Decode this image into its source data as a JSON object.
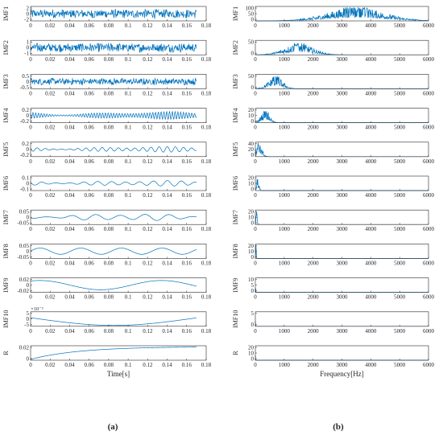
{
  "figure": {
    "panel_labels": [
      "(a)",
      "(b)"
    ],
    "left_xlabel": "Time[s]",
    "right_xlabel": "Frequency[Hz]",
    "exponent_label": "×10⁻³",
    "line_color": "#0072bd"
  },
  "chart_data": [
    {
      "type": "line",
      "panel": "a",
      "description_of_content": "Intrinsic mode functions of a vibration signal in the time domain",
      "x": {
        "label": "Time[s]",
        "range": [
          0,
          0.18
        ],
        "ticks": [
          0,
          0.02,
          0.04,
          0.06,
          0.08,
          0.1,
          0.12,
          0.14,
          0.16,
          0.18
        ],
        "tick_labels": [
          "0",
          "0.02",
          "0.04",
          "0.06",
          "0.08",
          "0.1",
          "0.12",
          "0.14",
          "0.16",
          "0.18"
        ],
        "data_range": [
          0,
          0.17
        ]
      },
      "series": [
        {
          "name": "IMF1",
          "ylim": [
            -2,
            2
          ],
          "y_ticks": [
            "2",
            "0",
            "-2"
          ],
          "amplitude": 1.3,
          "dominant_hz": 3500,
          "pattern": "noise"
        },
        {
          "name": "IMF2",
          "ylim": [
            -1.2,
            1.2
          ],
          "y_ticks": [
            "1",
            "0",
            "-1"
          ],
          "amplitude": 0.8,
          "dominant_hz": 1500,
          "pattern": "noise"
        },
        {
          "name": "IMF3",
          "ylim": [
            -0.6,
            0.6
          ],
          "y_ticks": [
            "0.5",
            "0",
            "-0.5"
          ],
          "amplitude": 0.3,
          "dominant_hz": 700,
          "pattern": "noise"
        },
        {
          "name": "IMF4",
          "ylim": [
            -0.25,
            0.25
          ],
          "y_ticks": [
            "0.2",
            "0",
            "-0.2"
          ],
          "amplitude": 0.14,
          "dominant_hz": 350,
          "pattern": "oscillation"
        },
        {
          "name": "IMF5",
          "ylim": [
            -0.25,
            0.25
          ],
          "y_ticks": [
            "0.2",
            "0",
            "-0.2"
          ],
          "amplitude": 0.1,
          "dominant_hz": 120,
          "pattern": "oscillation"
        },
        {
          "name": "IMF6",
          "ylim": [
            -0.15,
            0.15
          ],
          "y_ticks": [
            "0.1",
            "0",
            "-0.1"
          ],
          "amplitude": 0.06,
          "dominant_hz": 70,
          "pattern": "oscillation"
        },
        {
          "name": "IMF7",
          "ylim": [
            -0.07,
            0.07
          ],
          "y_ticks": [
            "0.05",
            "0",
            "-0.05"
          ],
          "amplitude": 0.035,
          "dominant_hz": 40,
          "pattern": "oscillation"
        },
        {
          "name": "IMF8",
          "ylim": [
            -0.07,
            0.07
          ],
          "y_ticks": [
            "0.05",
            "0",
            "-0.05"
          ],
          "amplitude": 0.03,
          "dominant_hz": 24,
          "pattern": "sine"
        },
        {
          "name": "IMF9",
          "ylim": [
            -0.025,
            0.025
          ],
          "y_ticks": [
            "0.02",
            "0",
            "-0.02"
          ],
          "amplitude": 0.016,
          "dominant_hz": 8,
          "pattern": "sine"
        },
        {
          "name": "IMF10",
          "ylim": [
            -8,
            8
          ],
          "y_ticks": [
            "5",
            "0",
            "-5"
          ],
          "amplitude": 7,
          "dominant_hz": 3.3,
          "pattern": "sine"
        },
        {
          "name": "R",
          "ylim": [
            -0.025,
            0.025
          ],
          "y_ticks": [
            "0.02",
            "0"
          ],
          "amplitude": 0.022,
          "dominant_hz": 0,
          "pattern": "trend"
        }
      ]
    },
    {
      "type": "line",
      "panel": "b",
      "description_of_content": "Amplitude spectra of each IMF",
      "x": {
        "label": "Frequency[Hz]",
        "range": [
          0,
          6000
        ],
        "ticks": [
          0,
          1000,
          2000,
          3000,
          4000,
          5000,
          6000
        ],
        "tick_labels": [
          "0",
          "1000",
          "2000",
          "3000",
          "4000",
          "5000",
          "6000"
        ]
      },
      "series": [
        {
          "name": "IMF1",
          "ylim": [
            0,
            100
          ],
          "y_ticks": [
            "100",
            "50",
            "0"
          ],
          "peak_value": 95,
          "center_hz": 3500,
          "spread_hz": 1400
        },
        {
          "name": "IMF2",
          "ylim": [
            0,
            80
          ],
          "y_ticks": [
            "50",
            "0"
          ],
          "peak_value": 65,
          "center_hz": 1500,
          "spread_hz": 700
        },
        {
          "name": "IMF3",
          "ylim": [
            0,
            60
          ],
          "y_ticks": [
            "50",
            "0"
          ],
          "peak_value": 52,
          "center_hz": 700,
          "spread_hz": 350
        },
        {
          "name": "IMF4",
          "ylim": [
            0,
            28
          ],
          "y_ticks": [
            "20",
            "10",
            "0"
          ],
          "peak_value": 26,
          "center_hz": 350,
          "spread_hz": 200
        },
        {
          "name": "IMF5",
          "ylim": [
            0,
            40
          ],
          "y_ticks": [
            "40",
            "20",
            "0"
          ],
          "peak_value": 38,
          "center_hz": 130,
          "spread_hz": 140
        },
        {
          "name": "IMF6",
          "ylim": [
            0,
            25
          ],
          "y_ticks": [
            "20",
            "10",
            "0"
          ],
          "peak_value": 23,
          "center_hz": 70,
          "spread_hz": 70
        },
        {
          "name": "IMF7",
          "ylim": [
            0,
            20
          ],
          "y_ticks": [
            "20",
            "10",
            "0"
          ],
          "peak_value": 19,
          "center_hz": 40,
          "spread_hz": 40
        },
        {
          "name": "IMF8",
          "ylim": [
            0,
            20
          ],
          "y_ticks": [
            "20",
            "10",
            "0"
          ],
          "peak_value": 19,
          "center_hz": 24,
          "spread_hz": 15
        },
        {
          "name": "IMF9",
          "ylim": [
            0,
            12
          ],
          "y_ticks": [
            "10",
            "5",
            "0"
          ],
          "peak_value": 11,
          "center_hz": 8,
          "spread_hz": 8
        },
        {
          "name": "IMF10",
          "ylim": [
            0,
            8
          ],
          "y_ticks": [
            "5",
            "0"
          ],
          "peak_value": 7,
          "center_hz": 3,
          "spread_hz": 5
        },
        {
          "name": "R",
          "ylim": [
            0,
            25
          ],
          "y_ticks": [
            "20",
            "10",
            "0"
          ],
          "peak_value": 23,
          "center_hz": 0,
          "spread_hz": 5
        }
      ]
    }
  ]
}
